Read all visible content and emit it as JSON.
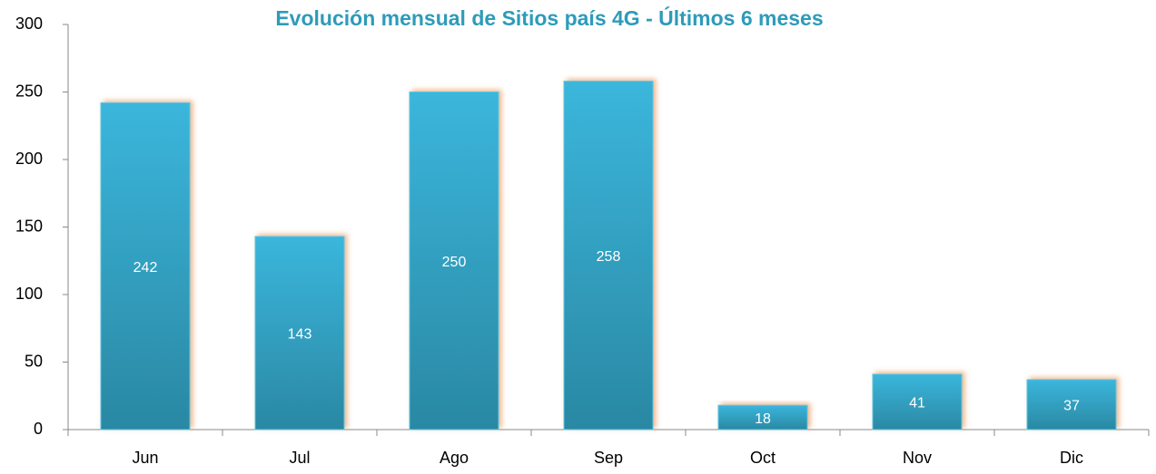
{
  "chart_data": {
    "type": "bar",
    "title": "Evolución mensual de Sitios país 4G - Últimos 6 meses",
    "categories": [
      "Jun",
      "Jul",
      "Ago",
      "Sep",
      "Oct",
      "Nov",
      "Dic"
    ],
    "values": [
      242,
      143,
      250,
      258,
      18,
      41,
      37
    ],
    "color": "#36acd2",
    "ylim": [
      0,
      300
    ],
    "yticks": [
      0,
      50,
      100,
      150,
      200,
      250,
      300
    ],
    "grid": false
  }
}
